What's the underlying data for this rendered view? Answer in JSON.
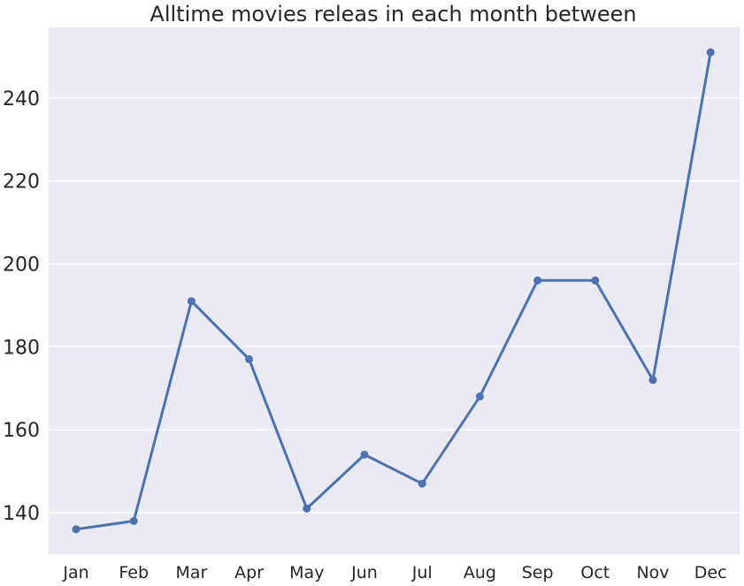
{
  "chart_data": {
    "type": "line",
    "title": "Alltime movies releas in each month between",
    "xlabel": "",
    "ylabel": "",
    "categories": [
      "Jan",
      "Feb",
      "Mar",
      "Apr",
      "May",
      "Jun",
      "Jul",
      "Aug",
      "Sep",
      "Oct",
      "Nov",
      "Dec"
    ],
    "series": [
      {
        "values": [
          136,
          138,
          191,
          177,
          141,
          154,
          147,
          168,
          196,
          196,
          172,
          251
        ]
      }
    ],
    "ylim": [
      130,
      257
    ],
    "yticks": [
      140,
      160,
      180,
      200,
      220,
      240
    ],
    "grid": true,
    "legend": "none",
    "colors": {
      "line": "#4c72b0",
      "background": "#eaeaf2",
      "grid": "#ffffff"
    }
  }
}
